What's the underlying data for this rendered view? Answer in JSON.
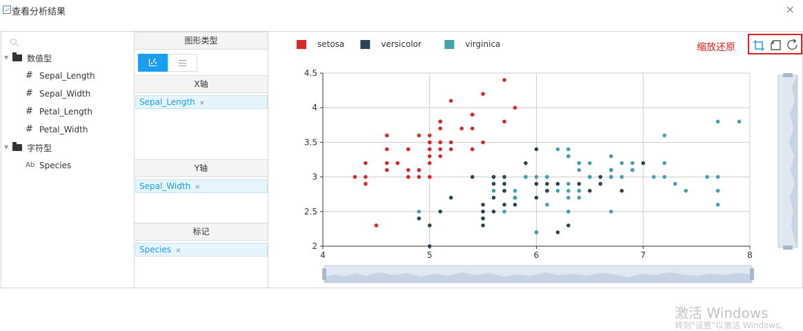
{
  "dialog": {
    "title": "查看分析结果",
    "close_symbol": "×"
  },
  "fields": {
    "search_placeholder": "",
    "groups": [
      {
        "label": "数值型",
        "items": [
          "Sepal_Length",
          "Sepal_Width",
          "Petal_Length",
          "Petal_Width"
        ]
      },
      {
        "label": "字符型",
        "items": [
          "Species"
        ]
      }
    ],
    "number_icon": "#",
    "string_icon": "Ab"
  },
  "config": {
    "chart_type_heading": "图形类型",
    "x_heading": "X轴",
    "x_field": "Sepal_Length",
    "y_heading": "Y轴",
    "y_field": "Sepal_Width",
    "mark_heading": "标记",
    "mark_field": "Species",
    "remove_symbol": "×"
  },
  "toolbox": {
    "annotation": "缩放还原"
  },
  "watermark": {
    "line1": "激活 Windows",
    "line2": "转到\"设置\"以激活 Windows。"
  },
  "chart_data": {
    "type": "scatter",
    "title": "",
    "xlabel": "",
    "ylabel": "",
    "xlim": [
      4,
      8
    ],
    "ylim": [
      2,
      4.5
    ],
    "xticks": [
      4,
      5,
      6,
      7,
      8
    ],
    "yticks": [
      2,
      2.5,
      3,
      3.5,
      4,
      4.5
    ],
    "legend_position": "top-left",
    "grid": true,
    "series": [
      {
        "name": "setosa",
        "color": "#d42a2a",
        "points": [
          [
            5.1,
            3.5
          ],
          [
            4.9,
            3.0
          ],
          [
            4.7,
            3.2
          ],
          [
            4.6,
            3.1
          ],
          [
            5.0,
            3.6
          ],
          [
            5.4,
            3.9
          ],
          [
            4.6,
            3.4
          ],
          [
            5.0,
            3.4
          ],
          [
            4.4,
            2.9
          ],
          [
            4.9,
            3.1
          ],
          [
            5.4,
            3.7
          ],
          [
            4.8,
            3.4
          ],
          [
            4.8,
            3.0
          ],
          [
            4.3,
            3.0
          ],
          [
            5.8,
            4.0
          ],
          [
            5.7,
            4.4
          ],
          [
            5.4,
            3.9
          ],
          [
            5.1,
            3.5
          ],
          [
            5.7,
            3.8
          ],
          [
            5.1,
            3.8
          ],
          [
            5.4,
            3.4
          ],
          [
            5.1,
            3.7
          ],
          [
            4.6,
            3.6
          ],
          [
            5.1,
            3.3
          ],
          [
            4.8,
            3.4
          ],
          [
            5.0,
            3.0
          ],
          [
            5.0,
            3.4
          ],
          [
            5.2,
            3.5
          ],
          [
            5.2,
            3.4
          ],
          [
            4.7,
            3.2
          ],
          [
            4.8,
            3.1
          ],
          [
            5.4,
            3.4
          ],
          [
            5.2,
            4.1
          ],
          [
            5.5,
            4.2
          ],
          [
            4.9,
            3.1
          ],
          [
            5.0,
            3.2
          ],
          [
            5.5,
            3.5
          ],
          [
            4.9,
            3.6
          ],
          [
            4.4,
            3.0
          ],
          [
            5.1,
            3.4
          ],
          [
            5.0,
            3.5
          ],
          [
            4.5,
            2.3
          ],
          [
            4.4,
            3.2
          ],
          [
            5.0,
            3.5
          ],
          [
            5.1,
            3.8
          ],
          [
            4.8,
            3.0
          ],
          [
            5.1,
            3.8
          ],
          [
            4.6,
            3.2
          ],
          [
            5.3,
            3.7
          ],
          [
            5.0,
            3.3
          ]
        ]
      },
      {
        "name": "versicolor",
        "color": "#2b4453",
        "points": [
          [
            7.0,
            3.2
          ],
          [
            6.4,
            3.2
          ],
          [
            6.9,
            3.1
          ],
          [
            5.5,
            2.3
          ],
          [
            6.5,
            2.8
          ],
          [
            5.7,
            2.8
          ],
          [
            6.3,
            3.3
          ],
          [
            4.9,
            2.4
          ],
          [
            6.6,
            2.9
          ],
          [
            5.2,
            2.7
          ],
          [
            5.0,
            2.0
          ],
          [
            5.9,
            3.0
          ],
          [
            6.0,
            2.2
          ],
          [
            6.1,
            2.9
          ],
          [
            5.6,
            2.9
          ],
          [
            6.7,
            3.1
          ],
          [
            5.6,
            3.0
          ],
          [
            5.8,
            2.7
          ],
          [
            6.2,
            2.2
          ],
          [
            5.6,
            2.5
          ],
          [
            5.9,
            3.2
          ],
          [
            6.1,
            2.8
          ],
          [
            6.3,
            2.5
          ],
          [
            6.1,
            2.8
          ],
          [
            6.4,
            2.9
          ],
          [
            6.6,
            3.0
          ],
          [
            6.8,
            2.8
          ],
          [
            6.7,
            3.0
          ],
          [
            6.0,
            2.9
          ],
          [
            5.7,
            2.6
          ],
          [
            5.5,
            2.4
          ],
          [
            5.5,
            2.4
          ],
          [
            5.8,
            2.7
          ],
          [
            6.0,
            2.7
          ],
          [
            5.4,
            3.0
          ],
          [
            6.0,
            3.4
          ],
          [
            6.7,
            3.1
          ],
          [
            6.3,
            2.3
          ],
          [
            5.6,
            3.0
          ],
          [
            5.5,
            2.5
          ],
          [
            5.5,
            2.6
          ],
          [
            6.1,
            3.0
          ],
          [
            5.8,
            2.6
          ],
          [
            5.0,
            2.3
          ],
          [
            5.6,
            2.7
          ],
          [
            5.7,
            3.0
          ],
          [
            5.7,
            2.9
          ],
          [
            6.2,
            2.9
          ],
          [
            5.1,
            2.5
          ],
          [
            5.7,
            2.8
          ]
        ]
      },
      {
        "name": "virginica",
        "color": "#41a2ad",
        "points": [
          [
            6.3,
            3.3
          ],
          [
            5.8,
            2.7
          ],
          [
            7.1,
            3.0
          ],
          [
            6.3,
            2.9
          ],
          [
            6.5,
            3.0
          ],
          [
            7.6,
            3.0
          ],
          [
            4.9,
            2.5
          ],
          [
            7.3,
            2.9
          ],
          [
            6.7,
            2.5
          ],
          [
            7.2,
            3.6
          ],
          [
            6.5,
            3.2
          ],
          [
            6.4,
            2.7
          ],
          [
            6.8,
            3.0
          ],
          [
            5.7,
            2.5
          ],
          [
            5.8,
            2.8
          ],
          [
            6.4,
            3.2
          ],
          [
            6.5,
            3.0
          ],
          [
            7.7,
            3.8
          ],
          [
            7.7,
            2.6
          ],
          [
            6.0,
            2.2
          ],
          [
            6.9,
            3.2
          ],
          [
            5.6,
            2.8
          ],
          [
            7.7,
            2.8
          ],
          [
            6.3,
            2.7
          ],
          [
            6.7,
            3.3
          ],
          [
            7.2,
            3.2
          ],
          [
            6.2,
            2.8
          ],
          [
            6.1,
            3.0
          ],
          [
            6.4,
            2.8
          ],
          [
            7.2,
            3.0
          ],
          [
            7.4,
            2.8
          ],
          [
            7.9,
            3.8
          ],
          [
            6.4,
            2.8
          ],
          [
            6.3,
            2.8
          ],
          [
            6.1,
            2.6
          ],
          [
            7.7,
            3.0
          ],
          [
            6.3,
            3.4
          ],
          [
            6.4,
            3.1
          ],
          [
            6.0,
            3.0
          ],
          [
            6.9,
            3.1
          ],
          [
            6.7,
            3.1
          ],
          [
            6.9,
            3.1
          ],
          [
            5.8,
            2.7
          ],
          [
            6.8,
            3.2
          ],
          [
            6.7,
            3.3
          ],
          [
            6.7,
            3.0
          ],
          [
            6.3,
            2.5
          ],
          [
            6.5,
            3.0
          ],
          [
            6.2,
            3.4
          ],
          [
            5.9,
            3.0
          ]
        ]
      }
    ]
  }
}
